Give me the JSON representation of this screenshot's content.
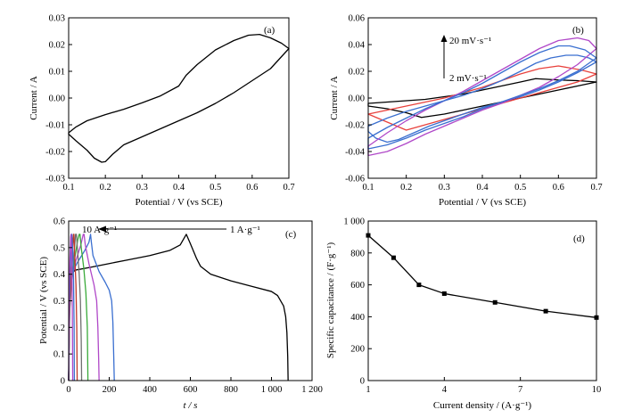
{
  "figure": {
    "panels": [
      {
        "id": "a",
        "label": "(a)",
        "xlabel": "Potential / V (vs SCE)",
        "ylabel": "Current / A",
        "xlim": [
          0.1,
          0.7
        ],
        "ylim": [
          -0.03,
          0.03
        ],
        "xticks": [
          0.1,
          0.2,
          0.3,
          0.4,
          0.5,
          0.6,
          0.7
        ],
        "xticklabels": [
          "0.1",
          "0.2",
          "0.3",
          "0.4",
          "0.5",
          "0.6",
          "0.7"
        ],
        "yticks": [
          -0.03,
          -0.02,
          -0.01,
          0.0,
          0.01,
          0.02,
          0.03
        ],
        "yticklabels": [
          "-0.03",
          "-0.02",
          "-0.01",
          "0.00",
          "0.01",
          "0.02",
          "0.03"
        ]
      },
      {
        "id": "b",
        "label": "(b)",
        "xlabel": "Potential / V (vs SCE)",
        "ylabel": "Current / A",
        "xlim": [
          0.1,
          0.7
        ],
        "ylim": [
          -0.06,
          0.06
        ],
        "xticks": [
          0.1,
          0.2,
          0.3,
          0.4,
          0.5,
          0.6,
          0.7
        ],
        "xticklabels": [
          "0.1",
          "0.2",
          "0.3",
          "0.4",
          "0.5",
          "0.6",
          "0.7"
        ],
        "yticks": [
          -0.06,
          -0.04,
          -0.02,
          0.0,
          0.02,
          0.04,
          0.06
        ],
        "yticklabels": [
          "-0.06",
          "-0.04",
          "-0.02",
          "0.00",
          "0.02",
          "0.04",
          "0.06"
        ],
        "annotation_high": "20 mV·s⁻¹",
        "annotation_low": "2 mV·s⁻¹"
      },
      {
        "id": "c",
        "label": "(c)",
        "xlabel": "t / s",
        "ylabel": "Potential / V (vs SCE)",
        "xlim": [
          0,
          1200
        ],
        "ylim": [
          0,
          0.6
        ],
        "xticks": [
          0,
          200,
          400,
          600,
          800,
          1000,
          1200
        ],
        "xticklabels": [
          "0",
          "200",
          "400",
          "600",
          "800",
          "1 000",
          "1 200"
        ],
        "yticks": [
          0,
          0.1,
          0.2,
          0.3,
          0.4,
          0.5,
          0.6
        ],
        "yticklabels": [
          "0",
          "0.1",
          "0.2",
          "0.3",
          "0.4",
          "0.5",
          "0.6"
        ],
        "annotation_left": "10 A·g⁻¹",
        "annotation_right": "1 A·g⁻¹"
      },
      {
        "id": "d",
        "label": "(d)",
        "xlabel": "Current density / (A·g⁻¹)",
        "ylabel": "Specific capacitance / (F·g⁻¹)",
        "xlim": [
          1,
          10
        ],
        "ylim": [
          0,
          1000
        ],
        "xticks": [
          1,
          4,
          7,
          10
        ],
        "xticklabels": [
          "1",
          "4",
          "7",
          "10"
        ],
        "yticks": [
          0,
          200,
          400,
          600,
          800,
          1000
        ],
        "yticklabels": [
          "0",
          "200",
          "400",
          "600",
          "800",
          "1 000"
        ]
      }
    ]
  },
  "chart_data": [
    {
      "panel": "a",
      "type": "line",
      "series": [
        {
          "color": "#000000",
          "closed": true,
          "x": [
            0.1,
            0.12,
            0.15,
            0.17,
            0.19,
            0.2,
            0.22,
            0.25,
            0.3,
            0.35,
            0.4,
            0.45,
            0.5,
            0.55,
            0.6,
            0.65,
            0.68,
            0.7,
            0.68,
            0.65,
            0.62,
            0.59,
            0.55,
            0.5,
            0.45,
            0.42,
            0.4,
            0.35,
            0.3,
            0.25,
            0.2,
            0.15,
            0.12,
            0.1
          ],
          "y": [
            -0.0135,
            -0.016,
            -0.0195,
            -0.0225,
            -0.024,
            -0.0238,
            -0.021,
            -0.0175,
            -0.0145,
            -0.0115,
            -0.0085,
            -0.0055,
            -0.002,
            0.002,
            0.0065,
            0.011,
            0.0155,
            0.0185,
            0.0205,
            0.0225,
            0.0238,
            0.0235,
            0.0215,
            0.018,
            0.0125,
            0.0085,
            0.0045,
            0.0008,
            -0.0018,
            -0.0042,
            -0.0062,
            -0.0085,
            -0.0108,
            -0.013
          ]
        }
      ]
    },
    {
      "panel": "b",
      "type": "line",
      "series": [
        {
          "color": "#000000",
          "closed": true,
          "x": [
            0.1,
            0.15,
            0.2,
            0.24,
            0.3,
            0.35,
            0.4,
            0.45,
            0.5,
            0.55,
            0.6,
            0.65,
            0.7,
            0.65,
            0.6,
            0.54,
            0.5,
            0.45,
            0.4,
            0.35,
            0.3,
            0.25,
            0.2,
            0.15,
            0.1
          ],
          "y": [
            -0.006,
            -0.008,
            -0.011,
            -0.0145,
            -0.012,
            -0.009,
            -0.006,
            -0.003,
            0.0,
            0.003,
            0.006,
            0.009,
            0.012,
            0.013,
            0.0135,
            0.0145,
            0.012,
            0.009,
            0.006,
            0.003,
            0.001,
            -0.001,
            -0.002,
            -0.003,
            -0.004
          ]
        },
        {
          "color": "#e8413c",
          "closed": true,
          "x": [
            0.1,
            0.15,
            0.2,
            0.25,
            0.3,
            0.35,
            0.4,
            0.45,
            0.5,
            0.55,
            0.6,
            0.65,
            0.7,
            0.66,
            0.6,
            0.55,
            0.5,
            0.45,
            0.4,
            0.35,
            0.3,
            0.25,
            0.2,
            0.15,
            0.1
          ],
          "y": [
            -0.012,
            -0.018,
            -0.024,
            -0.02,
            -0.016,
            -0.012,
            -0.008,
            -0.004,
            0.0,
            0.004,
            0.008,
            0.012,
            0.018,
            0.021,
            0.024,
            0.022,
            0.018,
            0.013,
            0.008,
            0.004,
            0.0,
            -0.003,
            -0.006,
            -0.009,
            -0.012
          ]
        },
        {
          "color": "#3a6fd0",
          "closed": true,
          "x": [
            0.1,
            0.12,
            0.15,
            0.18,
            0.22,
            0.26,
            0.3,
            0.35,
            0.4,
            0.45,
            0.5,
            0.55,
            0.6,
            0.65,
            0.7,
            0.68,
            0.65,
            0.62,
            0.58,
            0.54,
            0.5,
            0.45,
            0.4,
            0.35,
            0.3,
            0.25,
            0.2,
            0.15,
            0.1
          ],
          "y": [
            -0.025,
            -0.03,
            -0.033,
            -0.031,
            -0.026,
            -0.021,
            -0.017,
            -0.012,
            -0.007,
            -0.003,
            0.001,
            0.006,
            0.012,
            0.019,
            0.027,
            0.03,
            0.032,
            0.032,
            0.03,
            0.026,
            0.02,
            0.013,
            0.007,
            0.002,
            -0.002,
            -0.006,
            -0.01,
            -0.015,
            -0.021
          ]
        },
        {
          "color": "#b048c8",
          "closed": true,
          "x": [
            0.1,
            0.15,
            0.2,
            0.25,
            0.3,
            0.35,
            0.4,
            0.45,
            0.5,
            0.55,
            0.6,
            0.65,
            0.7,
            0.68,
            0.65,
            0.6,
            0.55,
            0.5,
            0.45,
            0.4,
            0.35,
            0.3,
            0.25,
            0.2,
            0.15,
            0.1
          ],
          "y": [
            -0.043,
            -0.04,
            -0.034,
            -0.027,
            -0.021,
            -0.015,
            -0.009,
            -0.004,
            0.002,
            0.008,
            0.016,
            0.025,
            0.037,
            0.043,
            0.045,
            0.043,
            0.037,
            0.029,
            0.021,
            0.013,
            0.005,
            -0.002,
            -0.009,
            -0.017,
            -0.026,
            -0.036
          ]
        },
        {
          "color": "#3a6fd0",
          "closed": true,
          "x": [
            0.1,
            0.15,
            0.2,
            0.25,
            0.3,
            0.35,
            0.4,
            0.45,
            0.5,
            0.55,
            0.6,
            0.65,
            0.7,
            0.67,
            0.63,
            0.6,
            0.55,
            0.5,
            0.45,
            0.4,
            0.35,
            0.3,
            0.25,
            0.2,
            0.15,
            0.1
          ],
          "y": [
            -0.038,
            -0.035,
            -0.03,
            -0.024,
            -0.019,
            -0.014,
            -0.008,
            -0.003,
            0.002,
            0.007,
            0.013,
            0.02,
            0.03,
            0.036,
            0.039,
            0.039,
            0.034,
            0.027,
            0.019,
            0.011,
            0.004,
            -0.002,
            -0.008,
            -0.015,
            -0.022,
            -0.03
          ]
        }
      ]
    },
    {
      "panel": "c",
      "type": "line",
      "series": [
        {
          "color": "#000000",
          "x": [
            0,
            5,
            15,
            30,
            100,
            200,
            300,
            400,
            500,
            550,
            580,
            600,
            630,
            650,
            700,
            800,
            900,
            1000,
            1030,
            1060,
            1070,
            1076,
            1080,
            1082
          ],
          "y": [
            0.0,
            0.34,
            0.4,
            0.415,
            0.425,
            0.44,
            0.455,
            0.47,
            0.49,
            0.51,
            0.55,
            0.515,
            0.46,
            0.43,
            0.4,
            0.375,
            0.355,
            0.335,
            0.32,
            0.28,
            0.24,
            0.18,
            0.09,
            0.0
          ]
        },
        {
          "color": "#3a6fd0",
          "x": [
            0,
            5,
            15,
            40,
            80,
            100,
            108,
            112,
            120,
            150,
            180,
            200,
            212,
            218,
            222,
            225
          ],
          "y": [
            0.0,
            0.33,
            0.4,
            0.44,
            0.49,
            0.52,
            0.55,
            0.52,
            0.47,
            0.41,
            0.37,
            0.34,
            0.3,
            0.22,
            0.1,
            0.0
          ]
        },
        {
          "color": "#b048c8",
          "x": [
            0,
            5,
            15,
            35,
            60,
            72,
            76,
            82,
            100,
            125,
            138,
            144,
            148,
            150
          ],
          "y": [
            0.0,
            0.3,
            0.38,
            0.45,
            0.51,
            0.55,
            0.55,
            0.51,
            0.44,
            0.36,
            0.3,
            0.2,
            0.08,
            0.0
          ]
        },
        {
          "color": "#3aaa3a",
          "x": [
            0,
            5,
            15,
            30,
            45,
            52,
            56,
            62,
            75,
            85,
            92,
            95
          ],
          "y": [
            0.0,
            0.28,
            0.38,
            0.46,
            0.53,
            0.55,
            0.55,
            0.5,
            0.42,
            0.33,
            0.2,
            0.0
          ]
        },
        {
          "color": "#707070",
          "x": [
            0,
            5,
            15,
            28,
            34,
            38,
            45,
            52,
            58,
            62,
            64
          ],
          "y": [
            0.0,
            0.26,
            0.38,
            0.49,
            0.55,
            0.55,
            0.48,
            0.4,
            0.3,
            0.15,
            0.0
          ]
        },
        {
          "color": "#c0392b",
          "x": [
            0,
            4,
            12,
            20,
            24,
            26,
            30,
            36,
            40,
            42
          ],
          "y": [
            0.0,
            0.24,
            0.4,
            0.5,
            0.55,
            0.55,
            0.47,
            0.36,
            0.2,
            0.0
          ]
        },
        {
          "color": "#3a6fd0",
          "x": [
            0,
            3,
            8,
            14,
            16,
            20,
            24,
            27,
            28
          ],
          "y": [
            0.0,
            0.25,
            0.42,
            0.52,
            0.55,
            0.49,
            0.38,
            0.2,
            0.0
          ]
        },
        {
          "color": "#b048c8",
          "x": [
            0,
            2,
            6,
            10,
            12,
            15,
            18,
            20
          ],
          "y": [
            0.0,
            0.28,
            0.45,
            0.54,
            0.55,
            0.46,
            0.28,
            0.0
          ]
        }
      ]
    },
    {
      "panel": "d",
      "type": "line",
      "series": [
        {
          "color": "#000000",
          "marker": "square",
          "x": [
            1,
            2,
            3,
            4,
            6,
            8,
            10
          ],
          "y": [
            910,
            770,
            600,
            545,
            490,
            435,
            395
          ]
        }
      ]
    }
  ]
}
